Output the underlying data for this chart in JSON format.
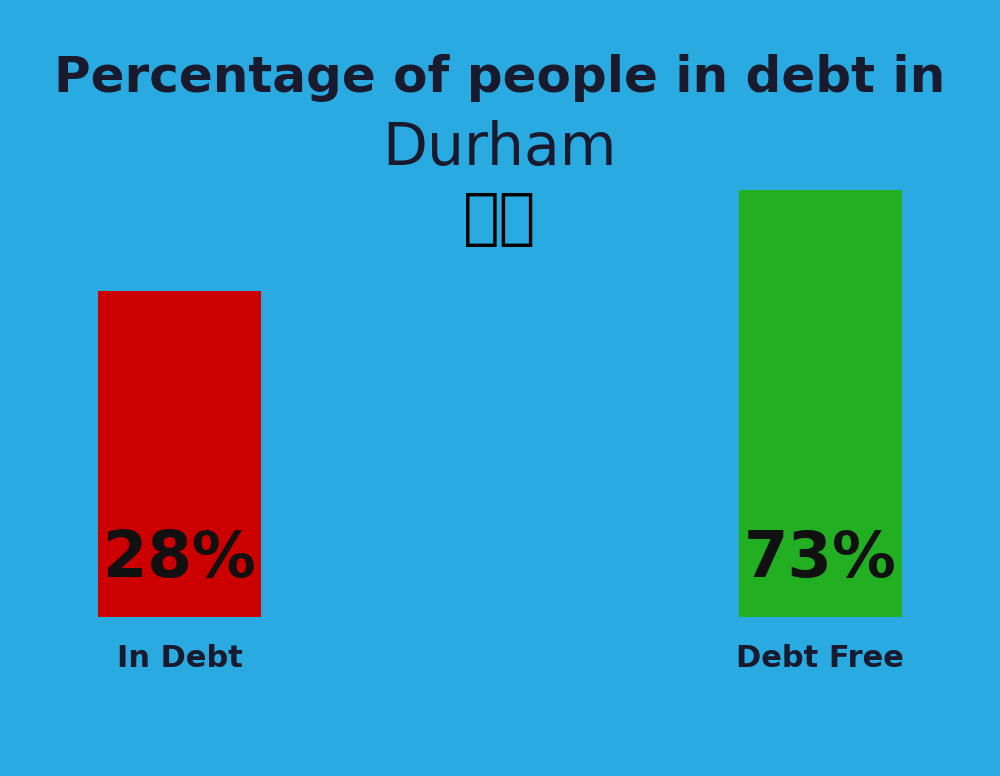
{
  "title_line1": "Percentage of people in debt in",
  "title_line2": "Durham",
  "background_color": "#29ABE2",
  "bar1_value": 28,
  "bar1_label": "28%",
  "bar1_category": "In Debt",
  "bar1_color": "#CC0000",
  "bar2_value": 73,
  "bar2_label": "73%",
  "bar2_category": "Debt Free",
  "bar2_color": "#22B022",
  "title_color": "#1a1a2e",
  "label_color": "#111111",
  "category_color": "#1a1a2e",
  "flag_emoji": "🇬🇧",
  "title_fontsize": 36,
  "subtitle_fontsize": 42,
  "bar_value_fontsize": 46,
  "category_fontsize": 22
}
